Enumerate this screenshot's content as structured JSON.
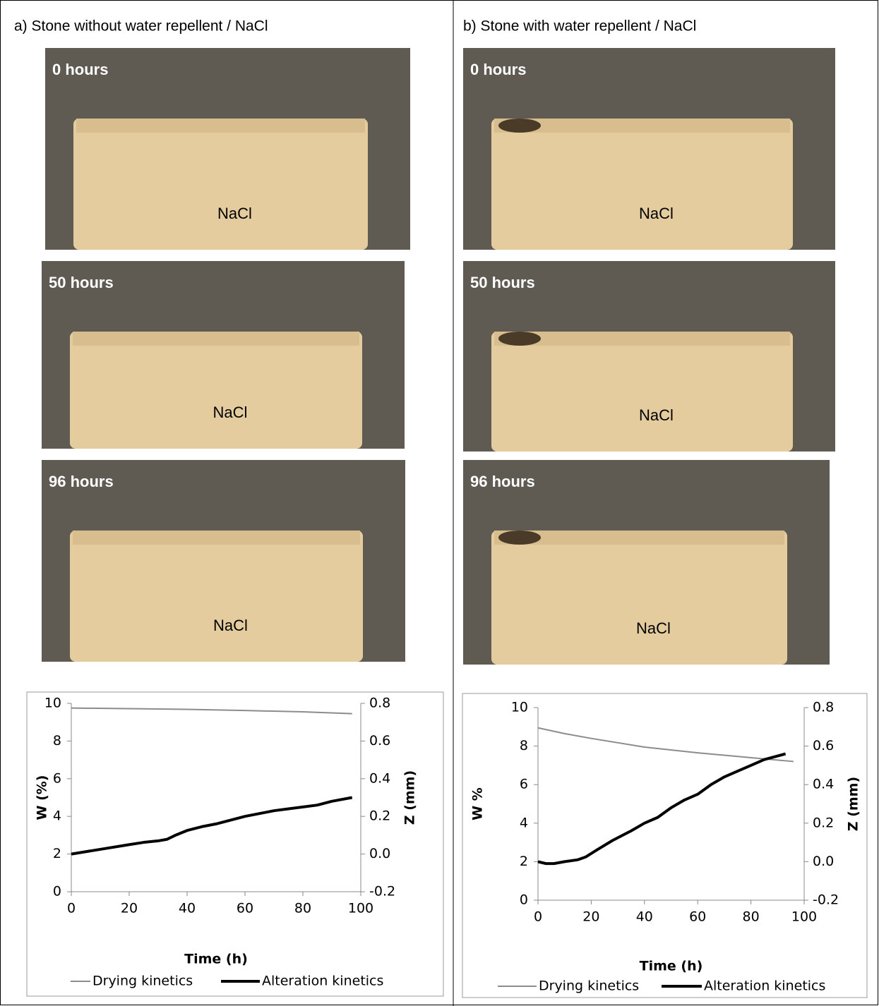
{
  "panels": [
    {
      "title": "a) Stone without water repellent / NaCl",
      "photos": [
        {
          "time": "0 hours",
          "label": "NaCl"
        },
        {
          "time": "50 hours",
          "label": "NaCl"
        },
        {
          "time": "96 hours",
          "label": "NaCl"
        }
      ]
    },
    {
      "title": "b) Stone with water repellent / NaCl",
      "photos": [
        {
          "time": "0 hours",
          "label": "NaCl"
        },
        {
          "time": "50 hours",
          "label": "NaCl"
        },
        {
          "time": "96 hours",
          "label": "NaCl"
        }
      ]
    }
  ],
  "chart_data": [
    {
      "type": "line",
      "x_label": "Time (h)",
      "y_label": "W (%)",
      "y2_label": "Z (mm)",
      "xlim": [
        0,
        100
      ],
      "xticks": [
        0,
        20,
        40,
        60,
        80,
        100
      ],
      "ylim": [
        0,
        10
      ],
      "yticks": [
        0,
        2,
        4,
        6,
        8,
        10
      ],
      "y2lim": [
        -0.2,
        0.8
      ],
      "y2ticks": [
        -0.2,
        {
          "value": 0,
          "label": "0.0"
        },
        0.2,
        0.4,
        0.6,
        0.8
      ],
      "series": [
        {
          "name": "Drying kinetics",
          "color": "#8c8c8c",
          "width": 2,
          "x": [
            0,
            20,
            40,
            60,
            80,
            97
          ],
          "values": [
            9.75,
            9.72,
            9.68,
            9.62,
            9.55,
            9.45
          ]
        },
        {
          "name": "Alteration kinetics",
          "color": "#000000",
          "width": 4,
          "axis": "y2",
          "x": [
            0,
            10,
            20,
            25,
            30,
            33,
            36,
            40,
            45,
            50,
            55,
            60,
            65,
            70,
            75,
            80,
            85,
            90,
            97
          ],
          "values": [
            0,
            0.025,
            0.05,
            0.062,
            0.07,
            0.078,
            0.1,
            0.125,
            0.145,
            0.16,
            0.18,
            0.2,
            0.215,
            0.23,
            0.24,
            0.25,
            0.26,
            0.28,
            0.3
          ]
        }
      ]
    },
    {
      "type": "line",
      "x_label": "Time (h)",
      "y_label": "W %",
      "y2_label": "Z (mm)",
      "xlim": [
        0,
        100
      ],
      "xticks": [
        0,
        20,
        40,
        60,
        80,
        100
      ],
      "ylim": [
        0,
        10
      ],
      "yticks": [
        0,
        2,
        4,
        6,
        8,
        10
      ],
      "y2lim": [
        -0.2,
        0.8
      ],
      "y2ticks": [
        -0.2,
        {
          "value": 0,
          "label": "0.0"
        },
        0.2,
        0.4,
        0.6,
        0.8
      ],
      "series": [
        {
          "name": "Drying kinetics",
          "color": "#8c8c8c",
          "width": 2,
          "x": [
            0,
            10,
            20,
            40,
            60,
            80,
            96
          ],
          "values": [
            8.95,
            8.65,
            8.4,
            7.95,
            7.65,
            7.4,
            7.2
          ]
        },
        {
          "name": "Alteration kinetics",
          "color": "#000000",
          "width": 4,
          "axis": "y2",
          "x": [
            0,
            3,
            6,
            10,
            15,
            18,
            22,
            28,
            35,
            40,
            45,
            50,
            55,
            60,
            65,
            70,
            75,
            80,
            85,
            93
          ],
          "values": [
            0,
            -0.01,
            -0.01,
            0,
            0.01,
            0.025,
            0.06,
            0.11,
            0.16,
            0.2,
            0.23,
            0.28,
            0.32,
            0.35,
            0.4,
            0.44,
            0.47,
            0.5,
            0.53,
            0.56
          ]
        }
      ]
    }
  ]
}
